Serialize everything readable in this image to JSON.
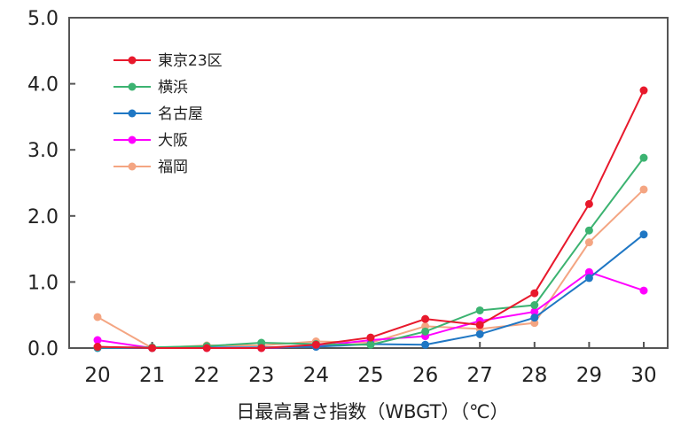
{
  "chart_data": {
    "type": "line",
    "title": "",
    "xlabel": "日最高暑さ指数（WBGT）（℃）",
    "ylabel": "",
    "x": [
      20,
      21,
      22,
      23,
      24,
      25,
      26,
      27,
      28,
      29,
      30
    ],
    "x_tick_labels": [
      "20",
      "21",
      "22",
      "23",
      "24",
      "25",
      "26",
      "27",
      "28",
      "29",
      "30"
    ],
    "y_tick_labels": [
      "0.0",
      "1.0",
      "2.0",
      "3.0",
      "4.0",
      "5.0"
    ],
    "ylim": [
      0,
      5
    ],
    "grid": false,
    "legend_position": "top-left",
    "series": [
      {
        "name": "東京23区",
        "color": "#e8192c",
        "values": [
          0.02,
          0.0,
          0.0,
          0.0,
          0.05,
          0.16,
          0.44,
          0.35,
          0.83,
          2.18,
          3.9
        ]
      },
      {
        "name": "横浜",
        "color": "#3cb371",
        "values": [
          0.01,
          0.01,
          0.03,
          0.08,
          0.06,
          0.05,
          0.25,
          0.57,
          0.65,
          1.78,
          2.88
        ]
      },
      {
        "name": "名古屋",
        "color": "#1f77c4",
        "values": [
          0.0,
          0.0,
          0.01,
          0.01,
          0.02,
          0.06,
          0.05,
          0.21,
          0.46,
          1.06,
          1.72
        ]
      },
      {
        "name": "大阪",
        "color": "#ff00ff",
        "values": [
          0.12,
          0.0,
          0.0,
          0.0,
          0.03,
          0.12,
          0.18,
          0.41,
          0.55,
          1.15,
          0.87
        ]
      },
      {
        "name": "福岡",
        "color": "#f4a582",
        "values": [
          0.47,
          0.0,
          0.04,
          0.04,
          0.1,
          0.08,
          0.33,
          0.29,
          0.38,
          1.6,
          2.4
        ]
      }
    ]
  }
}
